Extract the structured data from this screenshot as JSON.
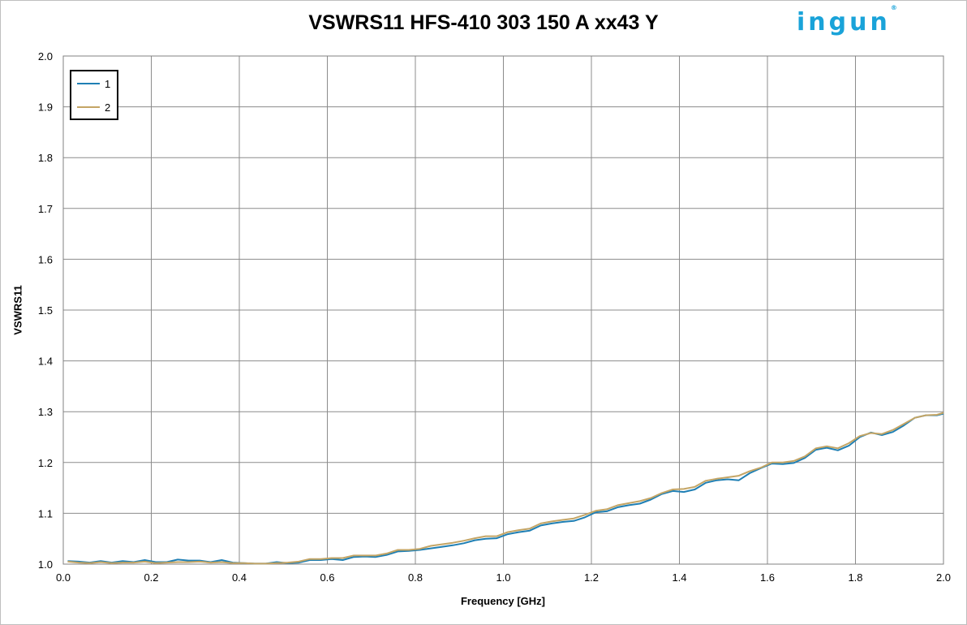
{
  "chart_data": {
    "type": "line",
    "title": "VSWRS11 HFS-410 303 150 A xx43 Y",
    "xlabel": "Frequency [GHz]",
    "ylabel": "VSWRS11",
    "xlim": [
      0.0,
      2.0
    ],
    "ylim": [
      1.0,
      2.0
    ],
    "x_ticks": [
      "0.0",
      "0.2",
      "0.4",
      "0.6",
      "0.8",
      "1.0",
      "1.2",
      "1.4",
      "1.6",
      "1.8",
      "2.0"
    ],
    "y_ticks": [
      "1.0",
      "1.1",
      "1.2",
      "1.3",
      "1.4",
      "1.5",
      "1.6",
      "1.7",
      "1.8",
      "1.9",
      "2.0"
    ],
    "grid": true,
    "legend_position": "top-left",
    "x": [
      0.01,
      0.035,
      0.06,
      0.085,
      0.11,
      0.135,
      0.16,
      0.185,
      0.21,
      0.235,
      0.26,
      0.285,
      0.31,
      0.335,
      0.36,
      0.385,
      0.41,
      0.435,
      0.46,
      0.485,
      0.51,
      0.535,
      0.56,
      0.585,
      0.61,
      0.635,
      0.66,
      0.685,
      0.71,
      0.735,
      0.76,
      0.785,
      0.81,
      0.835,
      0.86,
      0.885,
      0.91,
      0.935,
      0.96,
      0.985,
      1.01,
      1.035,
      1.06,
      1.085,
      1.11,
      1.135,
      1.16,
      1.185,
      1.21,
      1.235,
      1.26,
      1.285,
      1.31,
      1.335,
      1.36,
      1.385,
      1.41,
      1.435,
      1.46,
      1.485,
      1.51,
      1.535,
      1.56,
      1.585,
      1.61,
      1.635,
      1.66,
      1.685,
      1.71,
      1.735,
      1.76,
      1.785,
      1.81,
      1.835,
      1.86,
      1.885,
      1.91,
      1.935,
      1.96,
      1.985,
      2.0
    ],
    "series": [
      {
        "name": "1",
        "color": "#1f7fb4",
        "values": [
          1.006,
          1.005,
          1.003,
          1.006,
          1.003,
          1.006,
          1.004,
          1.008,
          1.004,
          1.004,
          1.009,
          1.007,
          1.007,
          1.004,
          1.008,
          1.003,
          1.002,
          1.001,
          1.001,
          1.004,
          1.002,
          1.003,
          1.008,
          1.008,
          1.01,
          1.008,
          1.014,
          1.015,
          1.014,
          1.018,
          1.025,
          1.026,
          1.028,
          1.031,
          1.034,
          1.037,
          1.041,
          1.047,
          1.05,
          1.051,
          1.059,
          1.063,
          1.066,
          1.076,
          1.08,
          1.083,
          1.085,
          1.092,
          1.102,
          1.104,
          1.112,
          1.116,
          1.119,
          1.127,
          1.138,
          1.144,
          1.142,
          1.147,
          1.16,
          1.165,
          1.167,
          1.165,
          1.179,
          1.189,
          1.198,
          1.197,
          1.199,
          1.209,
          1.225,
          1.229,
          1.224,
          1.233,
          1.25,
          1.259,
          1.254,
          1.26,
          1.273,
          1.288,
          1.293,
          1.293,
          1.296
        ]
      },
      {
        "name": "2",
        "color": "#c4a565",
        "values": [
          1.005,
          1.003,
          1.002,
          1.004,
          1.002,
          1.003,
          1.003,
          1.005,
          1.002,
          1.003,
          1.004,
          1.004,
          1.005,
          1.003,
          1.004,
          1.002,
          1.002,
          1.001,
          1.001,
          1.002,
          1.003,
          1.005,
          1.01,
          1.01,
          1.012,
          1.012,
          1.017,
          1.017,
          1.017,
          1.021,
          1.028,
          1.028,
          1.03,
          1.036,
          1.039,
          1.042,
          1.046,
          1.051,
          1.055,
          1.055,
          1.063,
          1.067,
          1.07,
          1.08,
          1.084,
          1.087,
          1.09,
          1.097,
          1.105,
          1.108,
          1.116,
          1.12,
          1.124,
          1.13,
          1.14,
          1.147,
          1.148,
          1.152,
          1.164,
          1.168,
          1.171,
          1.174,
          1.183,
          1.19,
          1.2,
          1.2,
          1.203,
          1.212,
          1.228,
          1.232,
          1.228,
          1.238,
          1.252,
          1.258,
          1.256,
          1.264,
          1.276,
          1.288,
          1.293,
          1.294,
          1.298
        ]
      }
    ]
  },
  "logo": {
    "text": "ingun",
    "mark": "®"
  }
}
